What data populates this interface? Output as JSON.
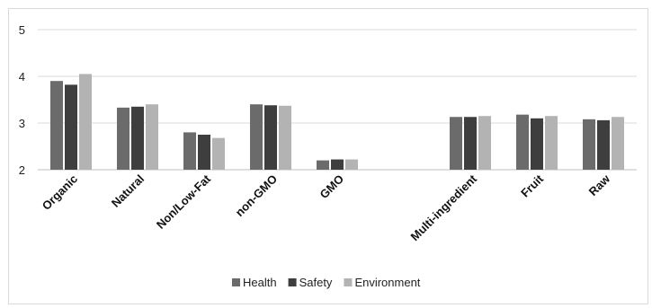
{
  "chart_data": {
    "type": "bar",
    "title": "",
    "xlabel": "",
    "ylabel": "",
    "ylim": [
      2,
      5
    ],
    "yticks": [
      "2",
      "3",
      "4",
      "5"
    ],
    "grid": "horizontal",
    "legend_position": "bottom",
    "categories": [
      "Organic",
      "Natural",
      "Non/Low-Fat",
      "non-GMO",
      "GMO",
      "",
      "Multi-ingredient",
      "Fruit",
      "Raw"
    ],
    "series": [
      {
        "name": "Health",
        "color": "#6b6b6b",
        "values": [
          3.9,
          3.33,
          2.8,
          3.4,
          2.2,
          null,
          3.13,
          3.18,
          3.08
        ]
      },
      {
        "name": "Safety",
        "color": "#3e3e3e",
        "values": [
          3.82,
          3.35,
          2.75,
          3.38,
          2.22,
          null,
          3.13,
          3.1,
          3.06
        ]
      },
      {
        "name": "Environment",
        "color": "#b3b3b3",
        "values": [
          4.05,
          3.4,
          2.68,
          3.37,
          2.22,
          null,
          3.15,
          3.15,
          3.13
        ]
      }
    ]
  }
}
